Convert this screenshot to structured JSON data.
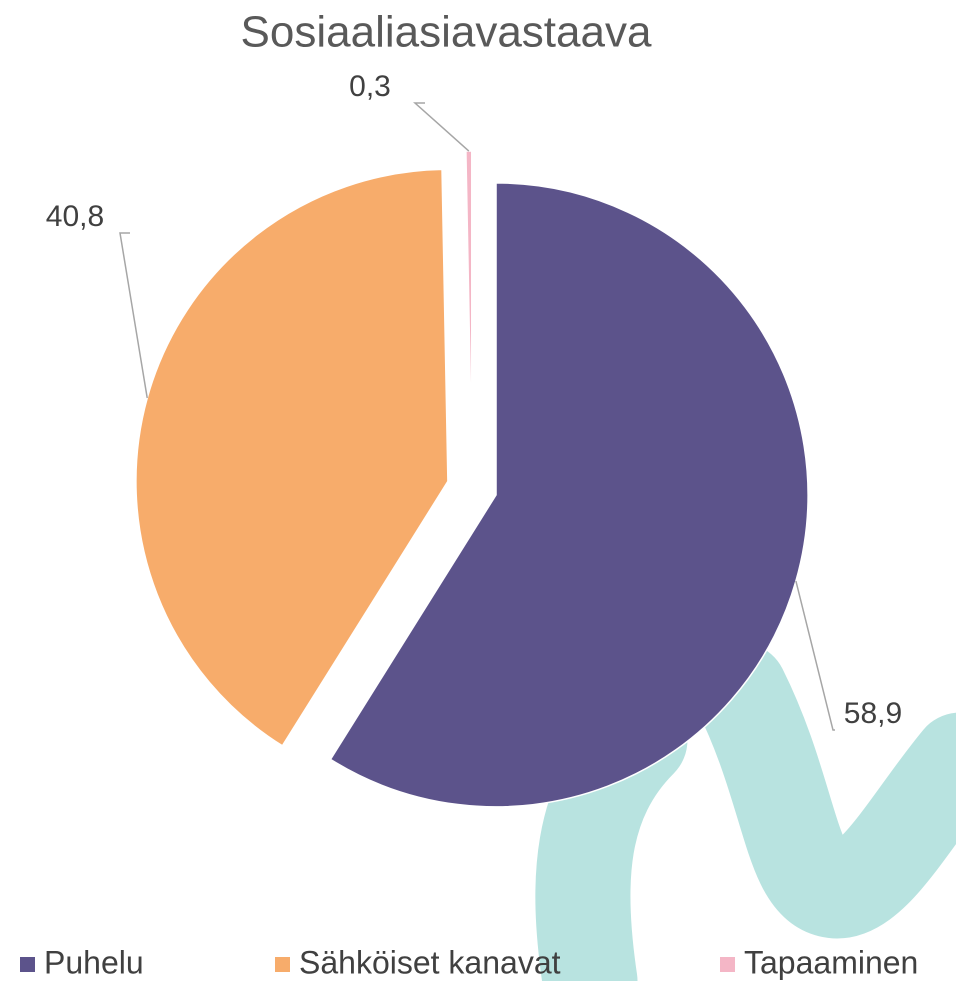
{
  "chart_data": {
    "type": "pie",
    "title": "Sosiaaliasiavastaava",
    "categories": [
      "Puhelu",
      "Sähköiset kanavat",
      "Tapaaminen"
    ],
    "values": [
      58.9,
      40.8,
      0.3
    ],
    "value_labels": [
      "58,9",
      "40,8",
      "0,3"
    ],
    "colors": [
      "#5c538b",
      "#f7ac6b",
      "#f4b6c6"
    ],
    "legend": "bottom"
  }
}
